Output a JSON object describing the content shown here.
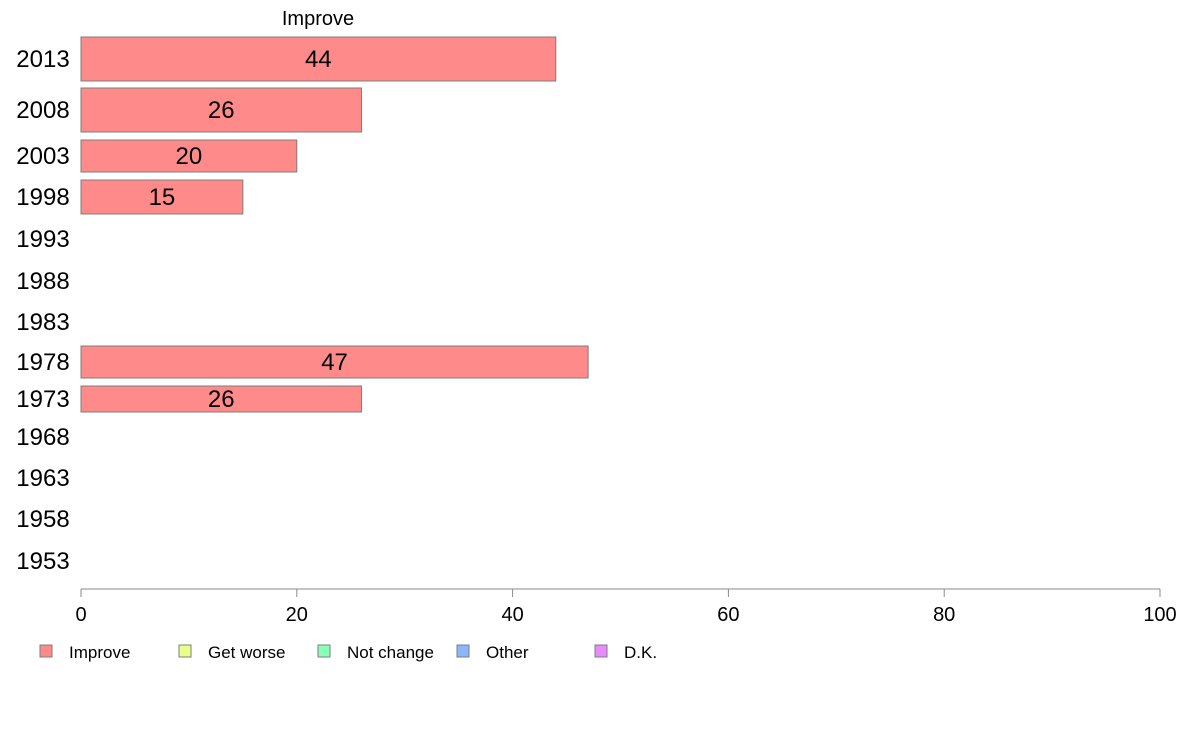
{
  "chart_data": {
    "type": "bar",
    "orientation": "horizontal",
    "title": "Improve",
    "categories": [
      "2013",
      "2008",
      "2003",
      "1998",
      "1993",
      "1988",
      "1983",
      "1978",
      "1973",
      "1968",
      "1963",
      "1958",
      "1953"
    ],
    "series": [
      {
        "name": "Improve",
        "values": [
          44,
          26,
          20,
          15,
          null,
          null,
          null,
          47,
          26,
          null,
          null,
          null,
          null
        ],
        "labels": [
          "44",
          "26",
          "20",
          "15",
          "",
          "",
          "",
          "47",
          "26",
          "",
          "",
          "",
          ""
        ]
      }
    ],
    "xlim": [
      0,
      100
    ],
    "xticks": [
      0,
      20,
      40,
      60,
      80,
      100
    ],
    "grid": false,
    "legend": {
      "placement": "bottom",
      "items": [
        {
          "label": "Improve",
          "color": "#ff8a8a"
        },
        {
          "label": "Get worse",
          "color": "#eaff8a"
        },
        {
          "label": "Not change",
          "color": "#8affb8"
        },
        {
          "label": "Other",
          "color": "#8ab8ff"
        },
        {
          "label": "D.K.",
          "color": "#ea8aff"
        }
      ]
    }
  },
  "colors": {
    "bar_fill": "#ff8a8a",
    "bar_stroke": "#7d7d7d",
    "axis": "#8a8a8a"
  }
}
